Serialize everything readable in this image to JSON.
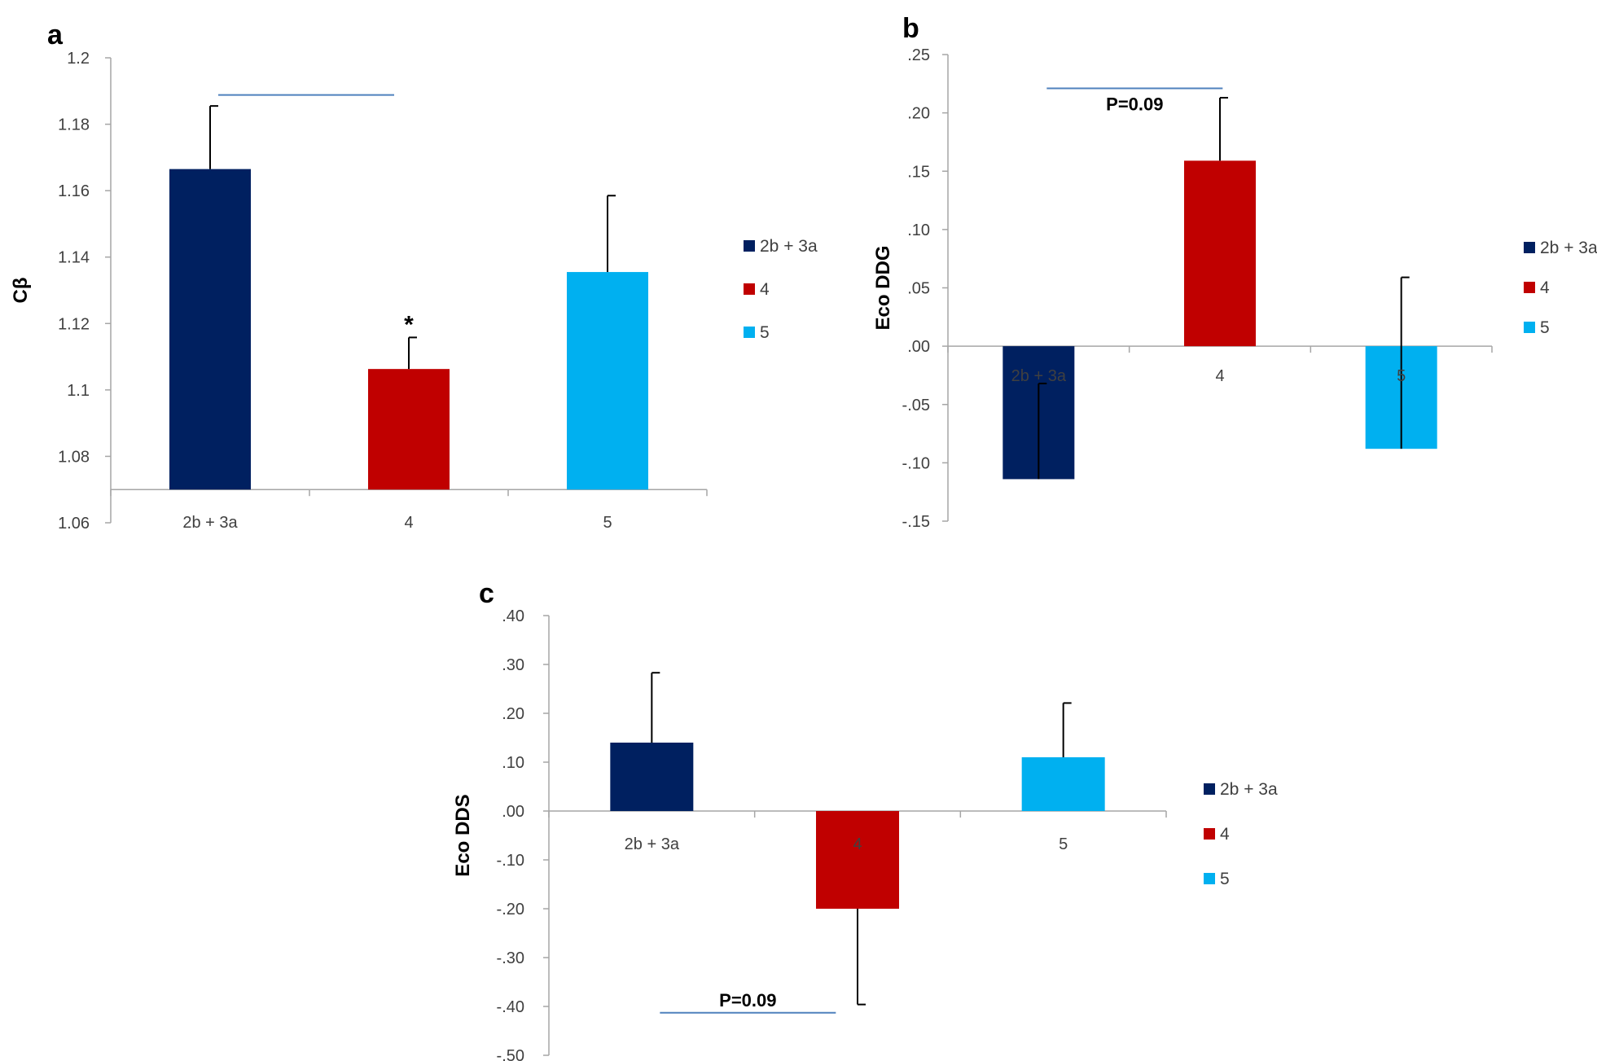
{
  "colors": {
    "series": [
      "#002060",
      "#c00000",
      "#00b0f0"
    ],
    "axis": "#a6a6a6",
    "significance_line": "#4f81bd",
    "error_bar": "#000000"
  },
  "chart_data": [
    {
      "panel": "a",
      "type": "bar",
      "title": "",
      "xlabel": "",
      "ylabel": "Cβ",
      "categories": [
        "2b + 3a",
        "4",
        "5"
      ],
      "values": [
        1.1665,
        1.1063,
        1.1355
      ],
      "errors": [
        0.019,
        0.0095,
        0.023
      ],
      "ylim": [
        1.06,
        1.2
      ],
      "yticks": [
        1.06,
        1.08,
        1.1,
        1.12,
        1.14,
        1.16,
        1.18,
        1.2
      ],
      "ytick_labels": [
        "1.06",
        "1.08",
        "1.1",
        "1.12",
        "1.14",
        "1.16",
        "1.18",
        "1.2"
      ],
      "baseline": 1.07,
      "legend": [
        "2b + 3a",
        "4",
        "5"
      ],
      "annotations": [
        {
          "text": "*",
          "category_index": 1,
          "kind": "star"
        },
        {
          "text": "",
          "from_index": 0,
          "to_index": 1,
          "y": 1.1888,
          "kind": "bracket"
        }
      ]
    },
    {
      "panel": "b",
      "type": "bar",
      "title": "",
      "xlabel": "",
      "ylabel": "Eco DDG",
      "categories": [
        "2b + 3a",
        "4",
        "5"
      ],
      "values": [
        -0.114,
        0.159,
        -0.088
      ],
      "errors": [
        0.082,
        0.054,
        0.147
      ],
      "error_direction": [
        1,
        1,
        1
      ],
      "ylim": [
        -0.15,
        0.25
      ],
      "yticks": [
        -0.15,
        -0.1,
        -0.05,
        0.0,
        0.05,
        0.1,
        0.15,
        0.2,
        0.25
      ],
      "ytick_labels": [
        "-.15",
        "-.10",
        "-.05",
        ".00",
        ".05",
        ".10",
        ".15",
        ".20",
        ".25"
      ],
      "baseline": 0.0,
      "legend": [
        "2b + 3a",
        "4",
        "5"
      ],
      "annotations": [
        {
          "text": "P=0.09",
          "from_index": 0,
          "to_index": 1,
          "y": 0.221,
          "kind": "bracket"
        }
      ]
    },
    {
      "panel": "c",
      "type": "bar",
      "title": "",
      "xlabel": "",
      "ylabel": "Eco DDS",
      "categories": [
        "2b + 3a",
        "4",
        "5"
      ],
      "values": [
        0.14,
        -0.2,
        0.11
      ],
      "errors": [
        0.143,
        0.196,
        0.111
      ],
      "error_direction": [
        1,
        -1,
        1
      ],
      "ylim": [
        -0.5,
        0.4
      ],
      "yticks": [
        -0.5,
        -0.4,
        -0.3,
        -0.2,
        -0.1,
        0.0,
        0.1,
        0.2,
        0.3,
        0.4
      ],
      "ytick_labels": [
        "-.50",
        "-.40",
        "-.30",
        "-.20",
        "-.10",
        ".00",
        ".10",
        ".20",
        ".30",
        ".40"
      ],
      "baseline": 0.0,
      "legend": [
        "2b + 3a",
        "4",
        "5"
      ],
      "annotations": [
        {
          "text": "P=0.09",
          "from_index": 0,
          "to_index": 1,
          "y": -0.413,
          "kind": "bracket"
        }
      ]
    }
  ]
}
